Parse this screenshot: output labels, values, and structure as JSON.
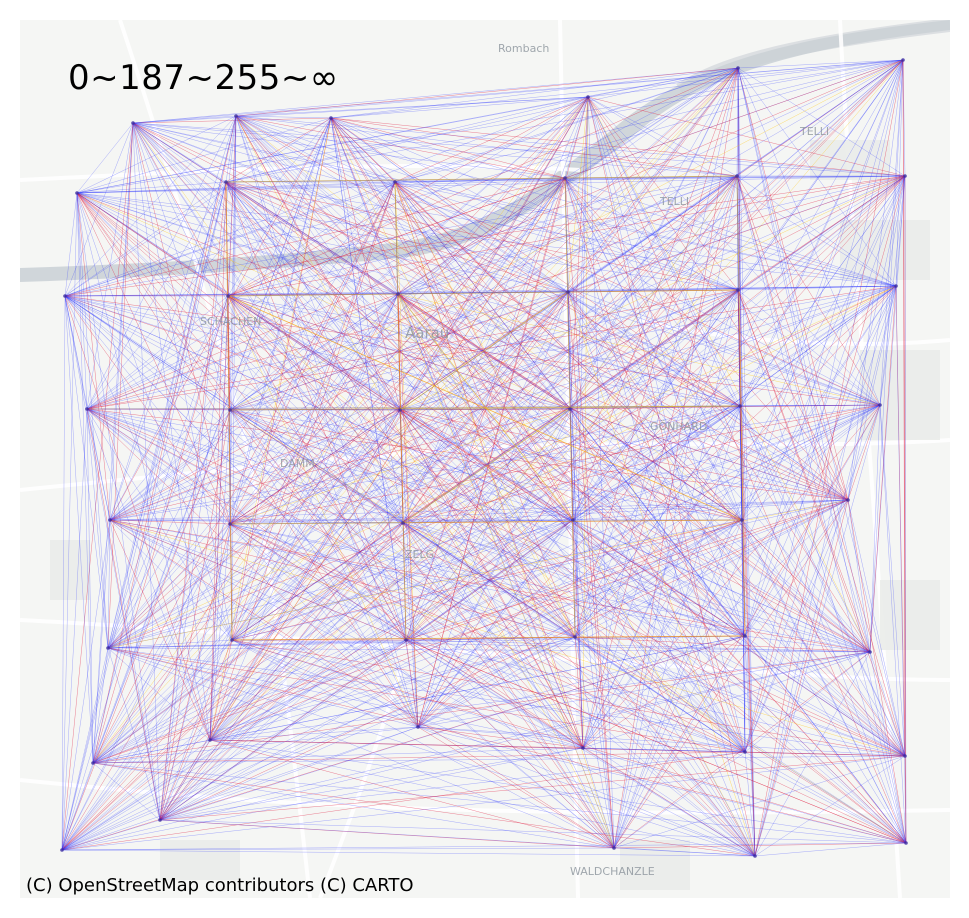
{
  "legend": {
    "title": "0~187~255~∞"
  },
  "attribution": "(C) OpenStreetMap contributors (C) CARTO",
  "basemap": {
    "place_labels": [
      "Rombach",
      "TELLI",
      "TELLI",
      "SCHACHEN",
      "Aarau",
      "GÖNHARD",
      "DAMM",
      "ZELG",
      "WALDCHANZLE"
    ],
    "colors": {
      "land": "#f2f3f1",
      "water": "#b9c1c8",
      "roads": "#ffffff",
      "labels": "#8a939b"
    }
  },
  "network": {
    "edge_color_scale": [
      {
        "range": "0–187",
        "color": "#2430ff"
      },
      {
        "range": "187–255",
        "color": "#e0183c"
      },
      {
        "range": "255–∞",
        "color": "#ffc400"
      }
    ],
    "node_count": 49
  }
}
